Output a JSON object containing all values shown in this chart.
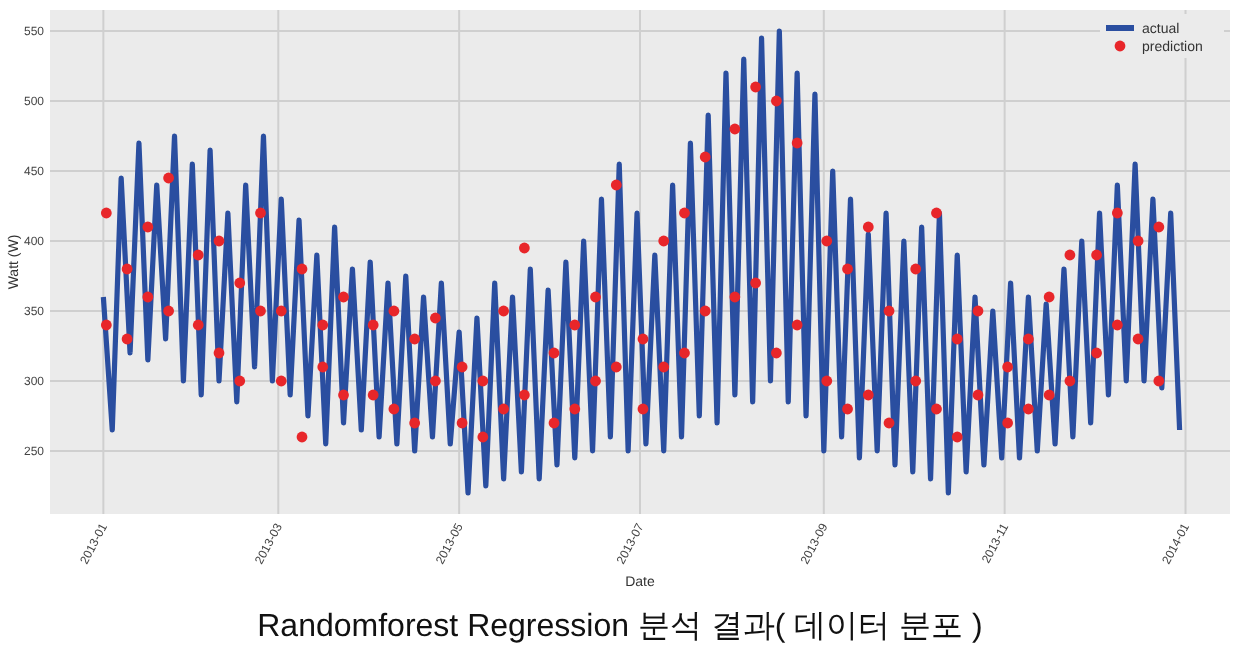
{
  "chart_data": {
    "type": "line",
    "xlabel": "Date",
    "ylabel": "Watt (W)",
    "annotations": [
      "Randomforest Regression 분석 결과( 데이터 분포 )"
    ],
    "xlim": [
      "2012-12-14",
      "2014-01-16"
    ],
    "ylim": [
      205,
      565
    ],
    "xticks": [
      "2013-01",
      "2013-03",
      "2013-05",
      "2013-07",
      "2013-09",
      "2013-11",
      "2014-01"
    ],
    "yticks": [
      250,
      300,
      350,
      400,
      450,
      500,
      550
    ],
    "grid": true,
    "legend": "top right",
    "series": [
      {
        "name": "actual",
        "type": "line",
        "color": "#2a4ea0",
        "x": [
          "2013-01-01",
          "2013-01-04",
          "2013-01-07",
          "2013-01-10",
          "2013-01-13",
          "2013-01-16",
          "2013-01-19",
          "2013-01-22",
          "2013-01-25",
          "2013-01-28",
          "2013-01-31",
          "2013-02-03",
          "2013-02-06",
          "2013-02-09",
          "2013-02-12",
          "2013-02-15",
          "2013-02-18",
          "2013-02-21",
          "2013-02-24",
          "2013-02-27",
          "2013-03-02",
          "2013-03-05",
          "2013-03-08",
          "2013-03-11",
          "2013-03-14",
          "2013-03-17",
          "2013-03-20",
          "2013-03-23",
          "2013-03-26",
          "2013-03-29",
          "2013-04-01",
          "2013-04-04",
          "2013-04-07",
          "2013-04-10",
          "2013-04-13",
          "2013-04-16",
          "2013-04-19",
          "2013-04-22",
          "2013-04-25",
          "2013-04-28",
          "2013-05-01",
          "2013-05-04",
          "2013-05-07",
          "2013-05-10",
          "2013-05-13",
          "2013-05-16",
          "2013-05-19",
          "2013-05-22",
          "2013-05-25",
          "2013-05-28",
          "2013-05-31",
          "2013-06-03",
          "2013-06-06",
          "2013-06-09",
          "2013-06-12",
          "2013-06-15",
          "2013-06-18",
          "2013-06-21",
          "2013-06-24",
          "2013-06-27",
          "2013-06-30",
          "2013-07-03",
          "2013-07-06",
          "2013-07-09",
          "2013-07-12",
          "2013-07-15",
          "2013-07-18",
          "2013-07-21",
          "2013-07-24",
          "2013-07-27",
          "2013-07-30",
          "2013-08-02",
          "2013-08-05",
          "2013-08-08",
          "2013-08-11",
          "2013-08-14",
          "2013-08-17",
          "2013-08-20",
          "2013-08-23",
          "2013-08-26",
          "2013-08-29",
          "2013-09-01",
          "2013-09-04",
          "2013-09-07",
          "2013-09-10",
          "2013-09-13",
          "2013-09-16",
          "2013-09-19",
          "2013-09-22",
          "2013-09-25",
          "2013-09-28",
          "2013-10-01",
          "2013-10-04",
          "2013-10-07",
          "2013-10-10",
          "2013-10-13",
          "2013-10-16",
          "2013-10-19",
          "2013-10-22",
          "2013-10-25",
          "2013-10-28",
          "2013-10-31",
          "2013-11-03",
          "2013-11-06",
          "2013-11-09",
          "2013-11-12",
          "2013-11-15",
          "2013-11-18",
          "2013-11-21",
          "2013-11-24",
          "2013-11-27",
          "2013-11-30",
          "2013-12-03",
          "2013-12-06",
          "2013-12-09",
          "2013-12-12",
          "2013-12-15",
          "2013-12-18",
          "2013-12-21",
          "2013-12-24",
          "2013-12-27",
          "2013-12-30"
        ],
        "values": [
          360,
          265,
          445,
          320,
          470,
          315,
          440,
          330,
          475,
          300,
          455,
          290,
          465,
          300,
          420,
          285,
          440,
          310,
          475,
          300,
          430,
          290,
          415,
          275,
          390,
          255,
          410,
          270,
          380,
          265,
          385,
          260,
          370,
          255,
          375,
          250,
          360,
          260,
          370,
          255,
          335,
          220,
          345,
          225,
          370,
          230,
          360,
          235,
          380,
          230,
          365,
          240,
          385,
          245,
          400,
          250,
          430,
          260,
          455,
          250,
          420,
          255,
          390,
          250,
          440,
          260,
          470,
          275,
          490,
          270,
          520,
          290,
          530,
          285,
          545,
          300,
          550,
          285,
          520,
          275,
          505,
          250,
          450,
          260,
          430,
          245,
          405,
          250,
          420,
          240,
          400,
          235,
          410,
          230,
          420,
          220,
          390,
          235,
          360,
          240,
          350,
          245,
          370,
          245,
          360,
          250,
          355,
          255,
          380,
          260,
          400,
          270,
          420,
          290,
          440,
          300,
          455,
          300,
          430,
          295,
          420,
          265
        ]
      },
      {
        "name": "prediction",
        "type": "scatter",
        "color": "#e8262a",
        "marker": "circle",
        "x": [
          "2013-01-02",
          "2013-01-02",
          "2013-01-09",
          "2013-01-09",
          "2013-01-16",
          "2013-01-16",
          "2013-01-23",
          "2013-01-23",
          "2013-02-02",
          "2013-02-02",
          "2013-02-09",
          "2013-02-09",
          "2013-02-16",
          "2013-02-16",
          "2013-02-23",
          "2013-02-23",
          "2013-03-02",
          "2013-03-02",
          "2013-03-09",
          "2013-03-09",
          "2013-03-16",
          "2013-03-16",
          "2013-03-23",
          "2013-03-23",
          "2013-04-02",
          "2013-04-02",
          "2013-04-09",
          "2013-04-09",
          "2013-04-16",
          "2013-04-16",
          "2013-04-23",
          "2013-04-23",
          "2013-05-02",
          "2013-05-02",
          "2013-05-09",
          "2013-05-09",
          "2013-05-16",
          "2013-05-16",
          "2013-05-23",
          "2013-05-23",
          "2013-06-02",
          "2013-06-02",
          "2013-06-09",
          "2013-06-09",
          "2013-06-16",
          "2013-06-16",
          "2013-06-23",
          "2013-06-23",
          "2013-07-02",
          "2013-07-02",
          "2013-07-09",
          "2013-07-09",
          "2013-07-16",
          "2013-07-16",
          "2013-07-23",
          "2013-07-23",
          "2013-08-02",
          "2013-08-02",
          "2013-08-09",
          "2013-08-09",
          "2013-08-16",
          "2013-08-16",
          "2013-08-23",
          "2013-08-23",
          "2013-09-02",
          "2013-09-02",
          "2013-09-09",
          "2013-09-09",
          "2013-09-16",
          "2013-09-16",
          "2013-09-23",
          "2013-09-23",
          "2013-10-02",
          "2013-10-02",
          "2013-10-09",
          "2013-10-09",
          "2013-10-16",
          "2013-10-16",
          "2013-10-23",
          "2013-10-23",
          "2013-11-02",
          "2013-11-02",
          "2013-11-09",
          "2013-11-09",
          "2013-11-16",
          "2013-11-16",
          "2013-11-23",
          "2013-11-23",
          "2013-12-02",
          "2013-12-02",
          "2013-12-09",
          "2013-12-09",
          "2013-12-16",
          "2013-12-16",
          "2013-12-23",
          "2013-12-23"
        ],
        "values": [
          420,
          340,
          380,
          330,
          410,
          360,
          445,
          350,
          390,
          340,
          400,
          320,
          370,
          300,
          420,
          350,
          350,
          300,
          380,
          260,
          340,
          310,
          360,
          290,
          340,
          290,
          350,
          280,
          330,
          270,
          345,
          300,
          310,
          270,
          300,
          260,
          350,
          280,
          395,
          290,
          320,
          270,
          340,
          280,
          360,
          300,
          440,
          310,
          330,
          280,
          400,
          310,
          420,
          320,
          460,
          350,
          480,
          360,
          510,
          370,
          500,
          320,
          470,
          340,
          400,
          300,
          380,
          280,
          410,
          290,
          350,
          270,
          380,
          300,
          420,
          280,
          330,
          260,
          350,
          290,
          310,
          270,
          330,
          280,
          360,
          290,
          390,
          300,
          390,
          320,
          420,
          340,
          400,
          330,
          410,
          300
        ]
      }
    ]
  }
}
